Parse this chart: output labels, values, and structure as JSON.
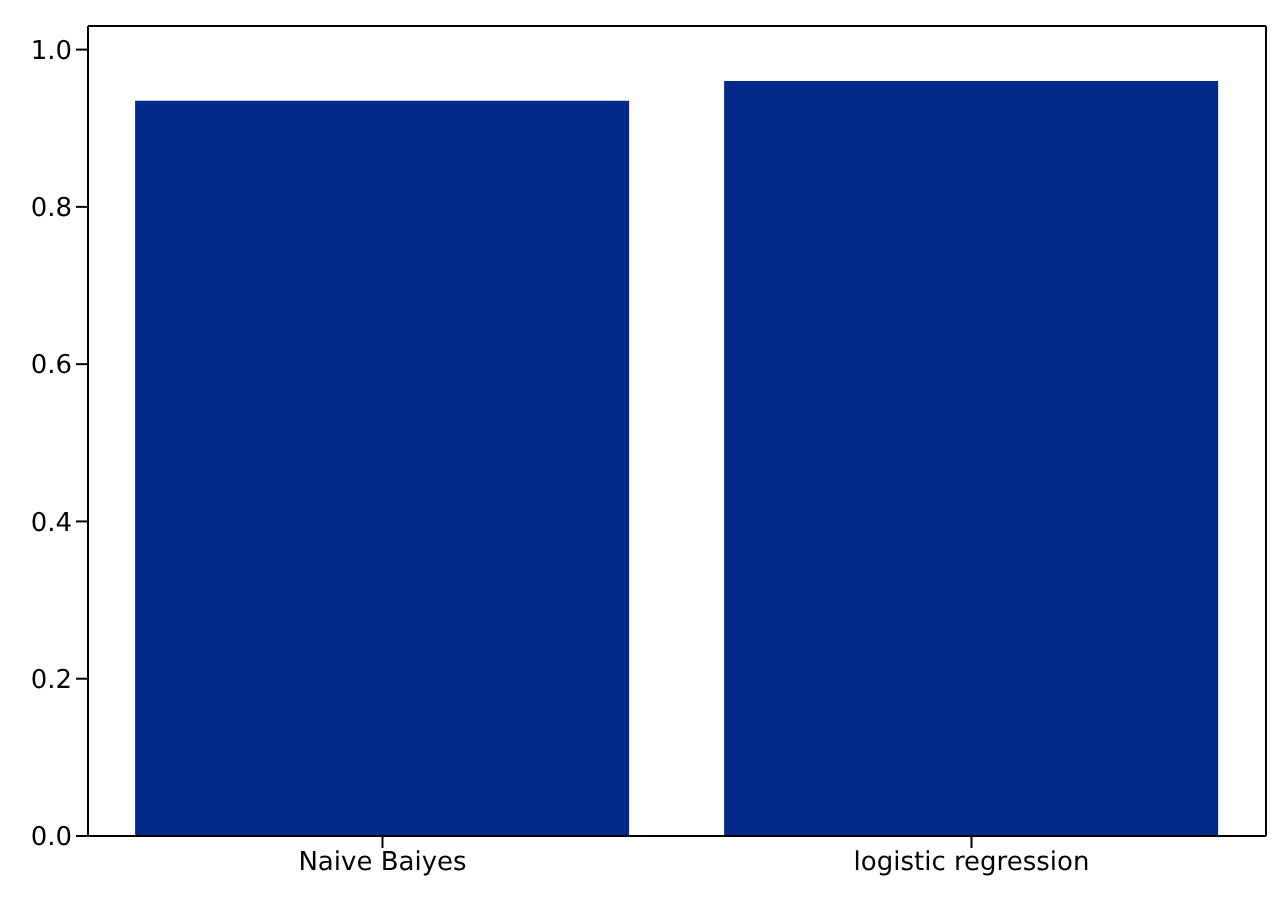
{
  "chart_data": {
    "type": "bar",
    "categories": [
      "Naive Baiyes",
      "logistic regression"
    ],
    "values": [
      0.935,
      0.96
    ],
    "color": "#00298a",
    "ylim": [
      0,
      1.03
    ],
    "yticks": [
      {
        "value": 0,
        "label": "0.0"
      },
      {
        "value": 0.2,
        "label": "0.2"
      },
      {
        "value": 0.4,
        "label": "0.4"
      },
      {
        "value": 0.6,
        "label": "0.6"
      },
      {
        "value": 0.8,
        "label": "0.8"
      },
      {
        "value": 1,
        "label": "1.0"
      }
    ],
    "grid": false
  }
}
